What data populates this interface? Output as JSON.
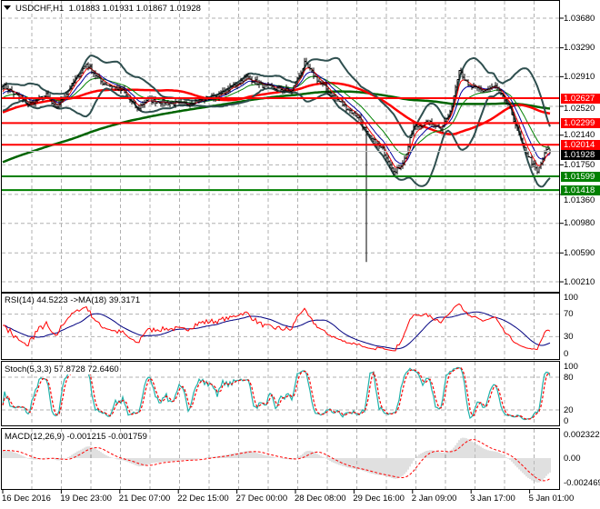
{
  "header": {
    "symbol": "USDCHF,H1",
    "open": "1.01883",
    "high": "1.01931",
    "low": "1.01867",
    "close": "1.01928",
    "menu_icon": "triangle-down-icon"
  },
  "price_axis": {
    "ticks": [
      "1.03680",
      "1.03290",
      "1.02910",
      "1.02520",
      "1.02140",
      "1.01750",
      "1.01360",
      "1.00980",
      "1.00590",
      "1.00210"
    ]
  },
  "levels": [
    {
      "label": "1.02627",
      "value": 1.02627,
      "color": "#ff0000"
    },
    {
      "label": "1.02299",
      "value": 1.02299,
      "color": "#ff0000"
    },
    {
      "label": "1.02014",
      "value": 1.02014,
      "color": "#ff0000"
    },
    {
      "label": "1.01599",
      "value": 1.01599,
      "color": "#008000"
    },
    {
      "label": "1.01418",
      "value": 1.01418,
      "color": "#008000"
    }
  ],
  "current_price": {
    "label": "1.01928",
    "value": 1.01928,
    "color": "#000000"
  },
  "time_axis": [
    "16 Dec 2016",
    "19 Dec 23:00",
    "21 Dec 07:00",
    "22 Dec 15:00",
    "27 Dec 00:00",
    "28 Dec 08:00",
    "29 Dec 16:00",
    "2 Jan 09:00",
    "3 Jan 17:00",
    "5 Jan 01:00"
  ],
  "rsi": {
    "label": "RSI(14) 44.5223  ->MA(18) 39.3171",
    "ticks": [
      "100",
      "70",
      "30",
      "0"
    ],
    "color": "#ff0000",
    "ma_color": "#000080"
  },
  "stoch": {
    "label": "Stoch(5,3,3) 57.8728 72.6460",
    "ticks": [
      "100",
      "80",
      "20",
      "0"
    ],
    "main_color": "#20b2aa",
    "signal_color": "#ff0000"
  },
  "macd": {
    "label": "MACD(12,26,9) -0.001215 -0.001759",
    "ticks": [
      "0.002322",
      "0.00",
      "-0.002469"
    ],
    "hist_color": "#c0c0c0",
    "signal_color": "#ff0000"
  },
  "chart_data": {
    "type": "ohlc",
    "symbol": "USDCHF",
    "timeframe": "H1",
    "bars": 302,
    "ylim": [
      1.0021,
      1.0368
    ],
    "close_keypoints": [
      [
        1,
        1.02783
      ],
      [
        14,
        1.02544
      ],
      [
        24,
        1.02663
      ],
      [
        29,
        1.02484
      ],
      [
        41,
        1.02903
      ],
      [
        46,
        1.03082
      ],
      [
        54,
        1.02843
      ],
      [
        66,
        1.02723
      ],
      [
        74,
        1.02484
      ],
      [
        79,
        1.02604
      ],
      [
        99,
        1.02544
      ],
      [
        119,
        1.02663
      ],
      [
        134,
        1.02903
      ],
      [
        144,
        1.02783
      ],
      [
        159,
        1.02723
      ],
      [
        166,
        1.03082
      ],
      [
        174,
        1.02843
      ],
      [
        184,
        1.02604
      ],
      [
        196,
        1.02364
      ],
      [
        201,
        1.02125
      ],
      [
        209,
        1.01946
      ],
      [
        216,
        1.01647
      ],
      [
        221,
        1.01826
      ],
      [
        226,
        1.02245
      ],
      [
        234,
        1.02305
      ],
      [
        241,
        1.02245
      ],
      [
        246,
        1.02424
      ],
      [
        251,
        1.03022
      ],
      [
        256,
        1.02783
      ],
      [
        264,
        1.02723
      ],
      [
        271,
        1.02783
      ],
      [
        279,
        1.02484
      ],
      [
        286,
        1.02006
      ],
      [
        294,
        1.01647
      ],
      [
        299,
        1.01946
      ],
      [
        301,
        1.01928
      ]
    ],
    "spike_low": {
      "bar": 200,
      "price": 1.0047
    },
    "indicators": [
      "Bollinger Bands(20,2)",
      "EMA(5)",
      "EMA(10)",
      "EMA(20)",
      "SMA(60)",
      "SMA(200)"
    ]
  }
}
